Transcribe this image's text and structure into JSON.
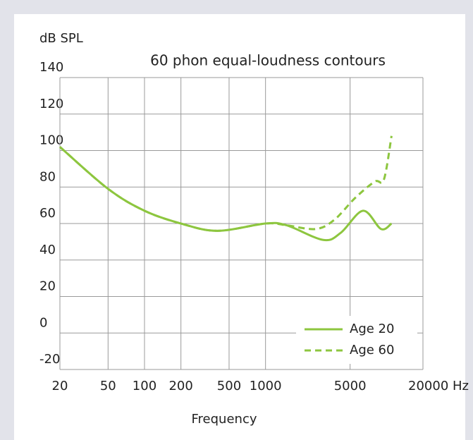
{
  "chart_data": {
    "type": "line",
    "title": "60 phon equal-loudness contours",
    "y_label": "dB SPL",
    "x_label": "Frequency",
    "x_scale": "log",
    "xlim": [
      20,
      20000
    ],
    "xticks": [
      20,
      50,
      100,
      200,
      500,
      1000,
      5000,
      {
        "value": 20000,
        "label": "20000 Hz"
      }
    ],
    "ylim": [
      -20,
      140
    ],
    "yticks": [
      -20,
      0,
      20,
      40,
      60,
      80,
      100,
      120,
      140
    ],
    "grid": true,
    "legend": "lower right",
    "series": [
      {
        "name": "Age 20",
        "color": "#8dc63f",
        "dash": "solid",
        "x": [
          20,
          50,
          100,
          200,
          400,
          1000,
          1500,
          3000,
          4200,
          6400,
          9000,
          11000
        ],
        "values": [
          102,
          79,
          67,
          60,
          56,
          60,
          59,
          51,
          55,
          67,
          57,
          60
        ]
      },
      {
        "name": "Age 60",
        "color": "#8dc63f",
        "dash": "dashed",
        "x": [
          20,
          50,
          100,
          200,
          400,
          1000,
          1500,
          2600,
          3700,
          5500,
          8000,
          9500,
          11000
        ],
        "values": [
          102,
          79,
          67,
          60,
          56,
          60,
          59,
          57,
          62,
          74,
          83,
          84,
          108
        ]
      }
    ]
  }
}
